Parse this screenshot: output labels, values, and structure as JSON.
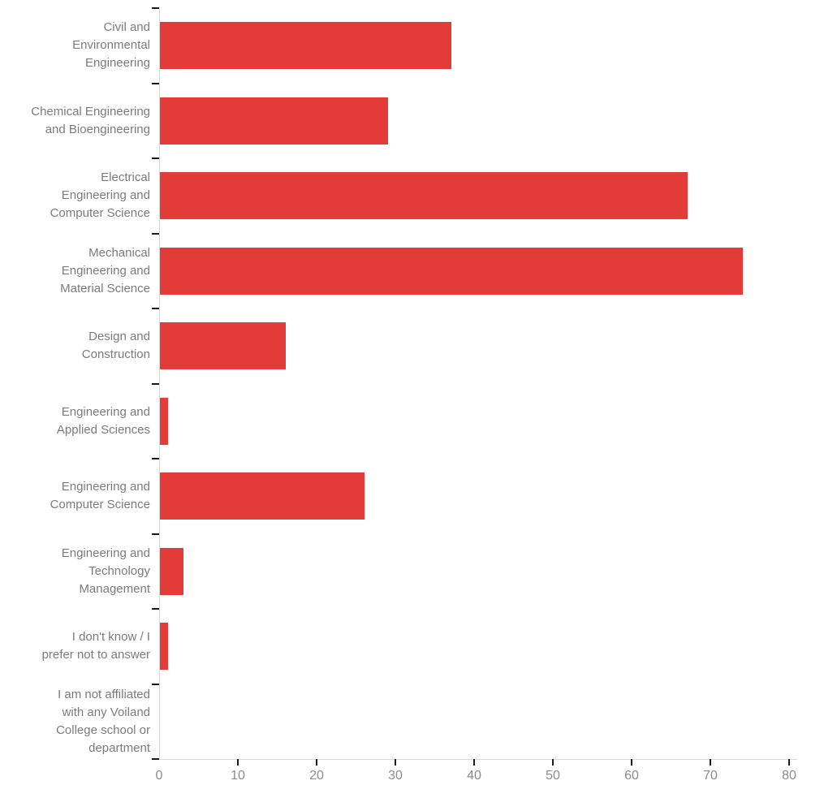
{
  "chart_data": {
    "type": "bar",
    "orientation": "horizontal",
    "title": "",
    "xlabel": "",
    "ylabel": "",
    "categories": [
      "Civil and Environmental Engineering",
      "Chemical Engineering and Bioengineering",
      "Electrical Engineering and Computer Science",
      "Mechanical Engineering and Material Science",
      "Design and Construction",
      "Engineering and Applied Sciences",
      "Engineering and Computer Science",
      "Engineering and Technology Management",
      "I don't know / I prefer not to answer",
      "I am not affiliated with any Voiland College school or department"
    ],
    "category_lines": [
      [
        "Civil and",
        "Environmental",
        "Engineering"
      ],
      [
        "Chemical Engineering",
        "and Bioengineering"
      ],
      [
        "Electrical",
        "Engineering and",
        "Computer Science"
      ],
      [
        "Mechanical",
        "Engineering and",
        "Material Science"
      ],
      [
        "Design and",
        "Construction"
      ],
      [
        "Engineering and",
        "Applied Sciences"
      ],
      [
        "Engineering and",
        "Computer Science"
      ],
      [
        "Engineering and",
        "Technology",
        "Management"
      ],
      [
        "I don't know / I",
        "prefer not to answer"
      ],
      [
        "I am not affiliated",
        "with any Voiland",
        "College school or",
        "department"
      ]
    ],
    "values": [
      37,
      29,
      67,
      74,
      16,
      1,
      26,
      3,
      1,
      0
    ],
    "xlim": [
      0,
      80
    ],
    "xticks": [
      0,
      10,
      20,
      30,
      40,
      50,
      60,
      70,
      80
    ],
    "xtick_labels": [
      "0",
      "10",
      "20",
      "30",
      "40",
      "50",
      "60",
      "70",
      "80"
    ],
    "grid": false,
    "legend": null,
    "bar_color": "#e23b38",
    "axis_line_color": "#d8d8d8",
    "tick_mark_color": "#1a1a1a",
    "label_color": "#7b7b7b"
  }
}
